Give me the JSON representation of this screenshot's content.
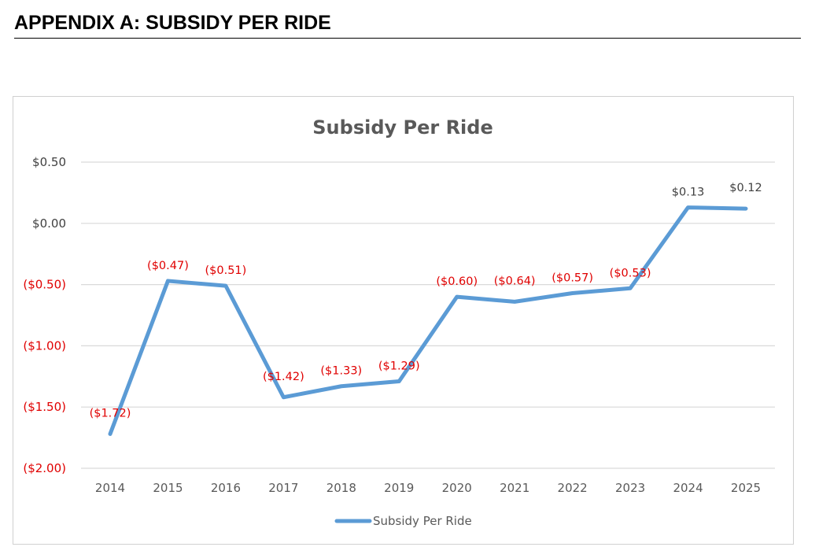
{
  "page": {
    "heading": "APPENDIX A: SUBSIDY PER RIDE"
  },
  "chart_data": {
    "type": "line",
    "title": "Subsidy Per Ride",
    "xlabel": "",
    "ylabel": "",
    "categories": [
      "2014",
      "2015",
      "2016",
      "2017",
      "2018",
      "2019",
      "2020",
      "2021",
      "2022",
      "2023",
      "2024",
      "2025"
    ],
    "series": [
      {
        "name": "Subsidy Per Ride",
        "color": "#5b9bd5",
        "values": [
          -1.72,
          -0.47,
          -0.51,
          -1.42,
          -1.33,
          -1.29,
          -0.6,
          -0.64,
          -0.57,
          -0.53,
          0.13,
          0.12
        ],
        "labels": [
          "($1.72)",
          "($0.47)",
          "($0.51)",
          "($1.42)",
          "($1.33)",
          "($1.29)",
          "($0.60)",
          "($0.64)",
          "($0.57)",
          "($0.53)",
          "$0.13",
          "$0.12"
        ]
      }
    ],
    "ylim": [
      -2.0,
      0.5
    ],
    "yticks": [
      0.5,
      0.0,
      -0.5,
      -1.0,
      -1.5,
      -2.0
    ],
    "ytick_labels": [
      "$0.50",
      "$0.00",
      "($0.50)",
      "($1.00)",
      "($1.50)",
      "($2.00)"
    ],
    "grid": true,
    "legend": "bottom",
    "colors": {
      "negative": "#e00000",
      "positive": "#404040",
      "grid": "#d9d9d9"
    }
  }
}
